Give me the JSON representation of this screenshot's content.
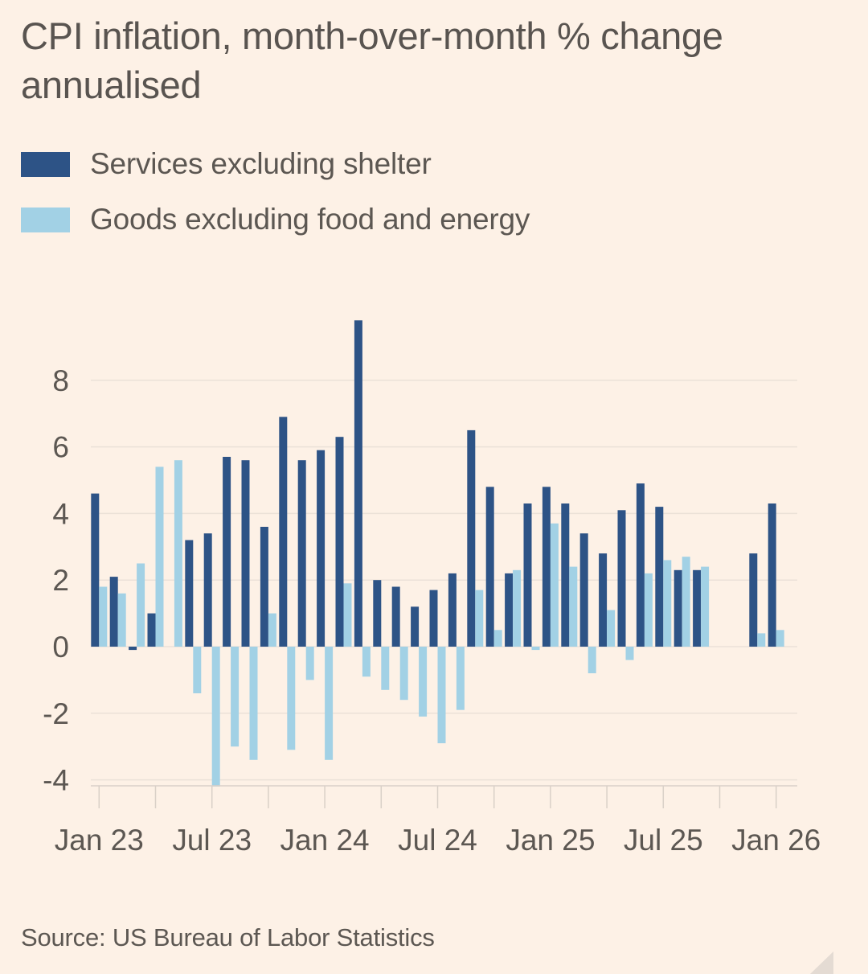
{
  "chart_data": {
    "type": "bar",
    "title": "CPI inflation, month-over-month % change annualised",
    "xlabel": "",
    "ylabel": "",
    "ylim": [
      -4,
      8
    ],
    "yticks": [
      8,
      6,
      4,
      2,
      0,
      -2,
      -4
    ],
    "ytick_labels": [
      "8",
      "6",
      "4",
      "2",
      "0",
      "-2",
      "-4"
    ],
    "grid": true,
    "legend_position": "top-left",
    "categories": [
      "Jan 23",
      "Feb 23",
      "Mar 23",
      "Apr 23",
      "May 23",
      "Jun 23",
      "Jul 23",
      "Aug 23",
      "Sep 23",
      "Oct 23",
      "Nov 23",
      "Dec 23",
      "Jan 24",
      "Feb 24",
      "Mar 24",
      "Apr 24",
      "May 24",
      "Jun 24",
      "Jul 24",
      "Aug 24",
      "Sep 24",
      "Oct 24",
      "Nov 24",
      "Dec 24",
      "Jan 25",
      "Feb 25",
      "Mar 25",
      "Apr 25",
      "May 25",
      "Jun 25",
      "Jul 25",
      "Aug 25",
      "Sep 25",
      "Oct 25",
      "Nov 25",
      "Dec 25",
      "Jan 26"
    ],
    "xtick_labels": [
      "Jan 23",
      "Jul 23",
      "Jan 24",
      "Jul 24",
      "Jan 25",
      "Jul 25",
      "Jan 26"
    ],
    "xtick_label_indices": [
      0,
      6,
      12,
      18,
      24,
      30,
      36
    ],
    "minor_tick_every_months": 3,
    "series": [
      {
        "name": "Services excluding shelter",
        "color": "#2d5386",
        "values": [
          4.6,
          2.1,
          -0.1,
          1.0,
          null,
          3.2,
          3.4,
          5.7,
          5.6,
          3.6,
          6.9,
          5.6,
          5.9,
          6.3,
          9.8,
          2.0,
          1.8,
          1.2,
          1.7,
          2.2,
          6.5,
          4.8,
          2.2,
          4.3,
          4.8,
          4.3,
          3.4,
          2.8,
          4.1,
          4.9,
          4.2,
          2.3,
          2.3,
          null,
          null,
          2.8,
          4.3
        ]
      },
      {
        "name": "Goods excluding food and energy",
        "color": "#a2d1e5",
        "values": [
          1.8,
          1.6,
          2.5,
          5.4,
          5.6,
          -1.4,
          -4.2,
          -3.0,
          -3.4,
          1.0,
          -3.1,
          -1.0,
          -3.4,
          1.9,
          -0.9,
          -1.3,
          -1.6,
          -2.1,
          -2.9,
          -1.9,
          1.7,
          0.5,
          2.3,
          -0.1,
          3.7,
          2.4,
          -0.8,
          1.1,
          -0.4,
          2.2,
          2.6,
          2.7,
          2.4,
          null,
          null,
          0.4,
          0.5
        ]
      }
    ],
    "source": "Source: US Bureau of Labor Statistics"
  },
  "colors": {
    "background": "#fdf1e6",
    "gridline": "#ebe1d8",
    "axis": "#d9d0c8",
    "text": "#5c5752"
  }
}
